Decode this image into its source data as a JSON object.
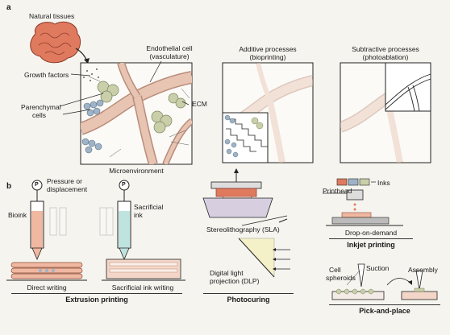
{
  "panel_a": {
    "letter": "a",
    "natural_tissues": "Natural tissues",
    "growth_factors": "Growth factors",
    "endothelial_line1": "Endothelial cell",
    "endothelial_line2": "(vasculature)",
    "parenchymal_line1": "Parenchymal",
    "parenchymal_line2": "cells",
    "ecm": "ECM",
    "microenvironment": "Microenvironment",
    "additive_line1": "Additive processes",
    "additive_line2": "(bioprinting)",
    "subtractive_line1": "Subtractive processes",
    "subtractive_line2": "(photoablation)"
  },
  "panel_b": {
    "letter": "b",
    "p_symbol": "P",
    "pressure_line1": "Pressure or",
    "pressure_line2": "displacement",
    "bioink": "Bioink",
    "sacrificial_line1": "Sacrificial",
    "sacrificial_line2": "ink",
    "direct_writing": "Direct writing",
    "sacrificial_ink_writing": "Sacrificial ink writing",
    "extrusion_printing": "Extrusion printing",
    "sla": "Stereolithography (SLA)",
    "dlp_line1": "Digital light",
    "dlp_line2": "projection (DLP)",
    "photocuring": "Photocuring",
    "printhead": "Printhead",
    "inks": "Inks",
    "drop_on_demand": "Drop-on-demand",
    "inkjet_printing": "Inkjet printing",
    "cell_line1": "Cell",
    "cell_line2": "spheroids",
    "suction": "Suction",
    "assembly": "Assembly",
    "pick_and_place": "Pick-and-place"
  },
  "colors": {
    "vessel": "#e8c4b2",
    "vessel_edge": "#b98c7a",
    "tissue": "#e07a5f",
    "parenchymal": "#c9cfa8",
    "endothelial_blue": "#9fb3c8",
    "bioink": "#f0b8a0",
    "sacrificial": "#bfe3df",
    "background": "#f6f4ef"
  }
}
